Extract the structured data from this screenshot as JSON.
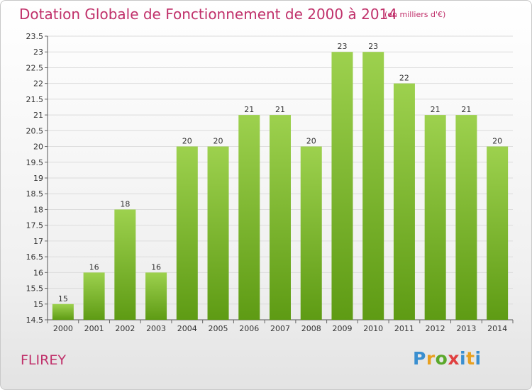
{
  "title": "Dotation Globale de Fonctionnement de 2000 à 2014",
  "subtitle": "(en milliers d'€)",
  "commune": "FLIREY",
  "logo_text": "Proxiti",
  "colors": {
    "title": "#c0306a",
    "bar_top": "#9dd14e",
    "bar_bottom": "#5e9b14",
    "grid": "#dcdcdc"
  },
  "chart_data": {
    "type": "bar",
    "title": "Dotation Globale de Fonctionnement de 2000 à 2014",
    "categories": [
      "2000",
      "2001",
      "2002",
      "2003",
      "2004",
      "2005",
      "2006",
      "2007",
      "2008",
      "2009",
      "2010",
      "2011",
      "2012",
      "2013",
      "2014"
    ],
    "values": [
      15,
      16,
      18,
      16,
      20,
      20,
      21,
      21,
      20,
      23,
      23,
      22,
      21,
      21,
      20
    ],
    "ylim": [
      14.5,
      23.5
    ],
    "yticks": [
      14.5,
      15,
      15.5,
      16,
      16.5,
      17,
      17.5,
      18,
      18.5,
      19,
      19.5,
      20,
      20.5,
      21,
      21.5,
      22,
      22.5,
      23,
      23.5
    ],
    "grid": true,
    "data_labels": true
  }
}
